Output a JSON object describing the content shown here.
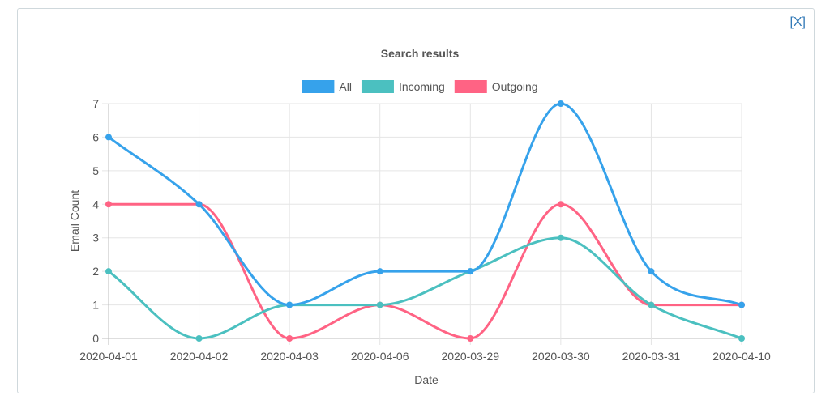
{
  "close_label": "[X]",
  "chart_data": {
    "type": "line",
    "title": "Search results",
    "xlabel": "Date",
    "ylabel": "Email Count",
    "categories": [
      "2020-04-01",
      "2020-04-02",
      "2020-04-03",
      "2020-04-06",
      "2020-03-29",
      "2020-03-30",
      "2020-03-31",
      "2020-04-10"
    ],
    "ylim": [
      0,
      7
    ],
    "yticks": [
      0,
      1,
      2,
      3,
      4,
      5,
      6,
      7
    ],
    "grid": true,
    "legend_position": "top-center",
    "series": [
      {
        "name": "All",
        "color": "#36a2eb",
        "values": [
          6,
          4,
          1,
          2,
          2,
          7,
          2,
          1
        ]
      },
      {
        "name": "Incoming",
        "color": "#4bc0c0",
        "values": [
          2,
          0,
          1,
          1,
          2,
          3,
          1,
          0
        ]
      },
      {
        "name": "Outgoing",
        "color": "#ff6384",
        "values": [
          4,
          4,
          0,
          1,
          0,
          4,
          1,
          1
        ]
      }
    ]
  }
}
